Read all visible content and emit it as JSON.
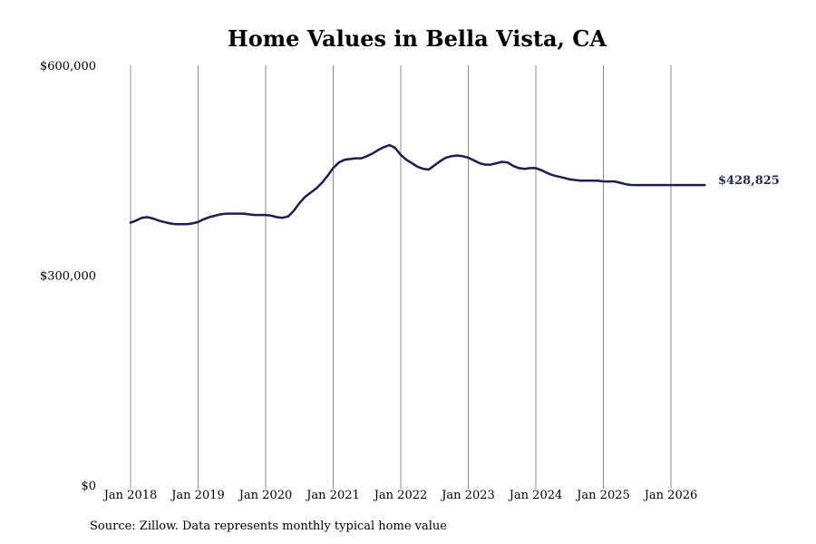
{
  "chart_data": {
    "type": "line",
    "title": "Home Values in Bella Vista, CA",
    "xlabel": "",
    "ylabel": "",
    "ylim": [
      0,
      600000
    ],
    "y_ticks": [
      0,
      300000,
      600000
    ],
    "y_tick_labels": [
      "$0",
      "$300,000",
      "$600,000"
    ],
    "x_tick_labels": [
      "Jan 2018",
      "Jan 2019",
      "Jan 2020",
      "Jan 2021",
      "Jan 2022",
      "Jan 2023",
      "Jan 2024",
      "Jan 2025",
      "Jan 2026"
    ],
    "x_range": [
      "2018-01",
      "2026-07"
    ],
    "grid": "vertical",
    "line_color": "#1a1a66",
    "series": [
      {
        "x": [
          "2018-01",
          "2018-02",
          "2018-03",
          "2018-04",
          "2018-05",
          "2018-06",
          "2018-07",
          "2018-08",
          "2018-09",
          "2018-10",
          "2018-11",
          "2018-12",
          "2019-01",
          "2019-02",
          "2019-03",
          "2019-04",
          "2019-05",
          "2019-06",
          "2019-07",
          "2019-08",
          "2019-09",
          "2019-10",
          "2019-11",
          "2019-12",
          "2020-01",
          "2020-02",
          "2020-03",
          "2020-04",
          "2020-05",
          "2020-06",
          "2020-07",
          "2020-08",
          "2020-09",
          "2020-10",
          "2020-11",
          "2020-12",
          "2021-01",
          "2021-02",
          "2021-03",
          "2021-04",
          "2021-05",
          "2021-06",
          "2021-07",
          "2021-08",
          "2021-09",
          "2021-10",
          "2021-11",
          "2021-12",
          "2022-01",
          "2022-02",
          "2022-03",
          "2022-04",
          "2022-05",
          "2022-06",
          "2022-07",
          "2022-08",
          "2022-09",
          "2022-10",
          "2022-11",
          "2022-12",
          "2023-01",
          "2023-02",
          "2023-03",
          "2023-04",
          "2023-05",
          "2023-06",
          "2023-07",
          "2023-08",
          "2023-09",
          "2023-10",
          "2023-11",
          "2023-12",
          "2024-01",
          "2024-02",
          "2024-03",
          "2024-04",
          "2024-05",
          "2024-06",
          "2024-07",
          "2024-08",
          "2024-09",
          "2024-10",
          "2024-11",
          "2024-12",
          "2025-01",
          "2025-02",
          "2025-03",
          "2025-04",
          "2025-05",
          "2025-06",
          "2025-07",
          "2025-08",
          "2025-09",
          "2025-10",
          "2025-11",
          "2025-12",
          "2026-01",
          "2026-02",
          "2026-03",
          "2026-04",
          "2026-05",
          "2026-06",
          "2026-07"
        ],
        "y": [
          375000,
          378000,
          382000,
          383000,
          381000,
          378000,
          376000,
          374000,
          373000,
          373000,
          373000,
          374000,
          376000,
          380000,
          383000,
          385000,
          387000,
          388000,
          388000,
          388000,
          388000,
          387000,
          386000,
          386000,
          386000,
          385000,
          383000,
          382000,
          384000,
          392000,
          403000,
          412000,
          418000,
          424000,
          432000,
          442000,
          453000,
          461000,
          465000,
          466000,
          467000,
          467000,
          470000,
          474000,
          479000,
          483000,
          486000,
          482000,
          472000,
          465000,
          460000,
          455000,
          452000,
          451000,
          457000,
          463000,
          468000,
          470000,
          471000,
          470000,
          468000,
          464000,
          460000,
          458000,
          458000,
          460000,
          462000,
          461000,
          456000,
          453000,
          452000,
          453000,
          453000,
          450000,
          446000,
          443000,
          441000,
          439000,
          437000,
          436000,
          435000,
          435000,
          435000,
          435000,
          434000,
          434000,
          434000,
          432000,
          430000,
          429000,
          428825,
          428825,
          428825,
          428825,
          428825,
          428825,
          428825,
          428825,
          428825,
          428825,
          428825,
          428825,
          428825
        ]
      }
    ],
    "end_value_label": "$428,825"
  },
  "source_note": "Source: Zillow. Data represents monthly typical home value"
}
